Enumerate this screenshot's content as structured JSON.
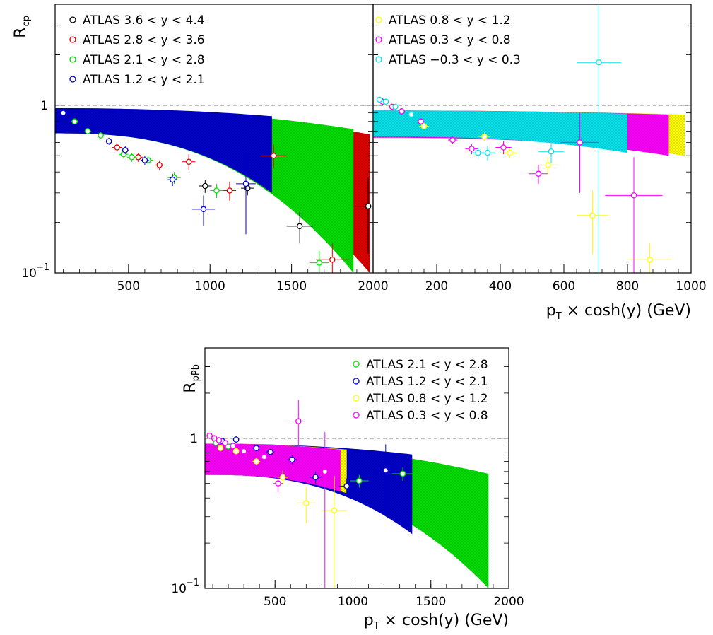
{
  "colors": {
    "black": "#000000",
    "red": "#e00000",
    "green": "#00e000",
    "blue": "#0000cc",
    "yellow": "#ffff00",
    "magenta": "#ff00ff",
    "cyan": "#00e5ee"
  },
  "chart_data": [
    {
      "type": "scatter",
      "panel": "top-left",
      "ylabel": "R",
      "ylabel_sub": "cp",
      "xlim": [
        50,
        2000
      ],
      "ylim": [
        0.1,
        4
      ],
      "yscale": "log",
      "xticks": [
        500,
        1000,
        1500,
        2000
      ],
      "xtick_labels": [
        "500",
        "1000",
        "1500",
        "2000"
      ],
      "ytick_labels": [
        {
          "v": 1,
          "base": "1",
          "exp": ""
        },
        {
          "v": 0.1,
          "base": "10",
          "exp": "−1"
        }
      ],
      "reference_line": 1,
      "legend_position": "top-left",
      "bands": [
        {
          "color": "red",
          "x": [
            50,
            1980
          ],
          "hi": [
            0.96,
            0.67
          ],
          "lo": [
            0.68,
            0.1
          ]
        },
        {
          "color": "green",
          "x": [
            50,
            1880
          ],
          "hi": [
            0.96,
            0.72
          ],
          "lo": [
            0.68,
            0.1
          ]
        },
        {
          "color": "blue",
          "x": [
            50,
            1380
          ],
          "hi": [
            0.96,
            0.86
          ],
          "lo": [
            0.68,
            0.3
          ]
        }
      ],
      "series": [
        {
          "name": "ATLAS  3.6 < y < 4.4",
          "color": "black",
          "points": [
            [
              970,
              0.33,
              40,
              0.03
            ],
            [
              1230,
              0.32,
              40,
              0.03
            ],
            [
              1550,
              0.19,
              80,
              0.04
            ],
            [
              1970,
              0.25,
              80,
              0.12
            ]
          ]
        },
        {
          "name": "ATLAS  2.8 < y < 3.6",
          "color": "red",
          "points": [
            [
              430,
              0.56,
              30,
              0.03
            ],
            [
              560,
              0.49,
              30,
              0.03
            ],
            [
              690,
              0.44,
              30,
              0.03
            ],
            [
              870,
              0.46,
              40,
              0.05
            ],
            [
              1120,
              0.31,
              40,
              0.04
            ],
            [
              1390,
              0.5,
              80,
              0.08
            ],
            [
              1750,
              0.12,
              100,
              0.03
            ]
          ]
        },
        {
          "name": "ATLAS  2.1 < y < 2.8",
          "color": "green",
          "points": [
            [
              170,
              0.8,
              20,
              0.03
            ],
            [
              250,
              0.7,
              20,
              0.03
            ],
            [
              330,
              0.66,
              20,
              0.03
            ],
            [
              470,
              0.51,
              30,
              0.03
            ],
            [
              520,
              0.49,
              30,
              0.03
            ],
            [
              620,
              0.47,
              30,
              0.03
            ],
            [
              780,
              0.37,
              40,
              0.03
            ],
            [
              1040,
              0.31,
              40,
              0.03
            ],
            [
              1670,
              0.115,
              60,
              0.02
            ]
          ]
        },
        {
          "name": "ATLAS  1.2 < y < 2.1",
          "color": "blue",
          "points": [
            [
              100,
              0.9,
              15,
              0.05
            ],
            [
              380,
              0.61,
              20,
              0.03
            ],
            [
              480,
              0.54,
              20,
              0.03
            ],
            [
              600,
              0.47,
              25,
              0.03
            ],
            [
              770,
              0.36,
              30,
              0.03
            ],
            [
              960,
              0.24,
              70,
              0.05
            ],
            [
              1220,
              0.34,
              60,
              0.17
            ]
          ]
        }
      ],
      "legend": [
        {
          "text": "ATLAS  3.6 < y < 4.4",
          "color": "black"
        },
        {
          "text": "ATLAS  2.8 < y < 3.6",
          "color": "red"
        },
        {
          "text": "ATLAS  2.1 < y < 2.8",
          "color": "green"
        },
        {
          "text": "ATLAS  1.2 < y < 2.1",
          "color": "blue"
        }
      ]
    },
    {
      "type": "scatter",
      "panel": "top-right",
      "xlabel": "p",
      "xlabel_sub": "T",
      "xlabel_rest": " × cosh(y) (GeV)",
      "xlim": [
        0,
        1000
      ],
      "ylim": [
        0.1,
        4
      ],
      "yscale": "log",
      "xticks": [
        200,
        400,
        600,
        800,
        1000
      ],
      "xtick_labels": [
        "200",
        "400",
        "600",
        "800",
        "1000"
      ],
      "reference_line": 1,
      "legend_position": "top-left",
      "bands": [
        {
          "color": "yellow",
          "x": [
            0,
            980
          ],
          "hi": [
            0.93,
            0.88
          ],
          "lo": [
            0.64,
            0.5
          ]
        },
        {
          "color": "magenta",
          "x": [
            0,
            930
          ],
          "hi": [
            0.93,
            0.88
          ],
          "lo": [
            0.64,
            0.5
          ]
        },
        {
          "color": "cyan",
          "x": [
            0,
            800
          ],
          "hi": [
            0.93,
            0.89
          ],
          "lo": [
            0.65,
            0.52
          ]
        }
      ],
      "series": [
        {
          "name": "ATLAS  0.8 < y < 1.2",
          "color": "yellow",
          "points": [
            [
              160,
              0.75,
              15,
              0.03
            ],
            [
              350,
              0.65,
              20,
              0.04
            ],
            [
              430,
              0.52,
              25,
              0.04
            ],
            [
              550,
              0.44,
              30,
              0.05
            ],
            [
              690,
              0.22,
              50,
              0.09
            ],
            [
              870,
              0.12,
              70,
              0.03
            ]
          ]
        },
        {
          "name": "ATLAS  0.3 < y < 0.8",
          "color": "magenta",
          "points": [
            [
              30,
              1.05,
              8,
              0.05
            ],
            [
              60,
              0.98,
              8,
              0.04
            ],
            [
              90,
              0.92,
              10,
              0.04
            ],
            [
              150,
              0.8,
              10,
              0.03
            ],
            [
              250,
              0.62,
              15,
              0.03
            ],
            [
              310,
              0.55,
              20,
              0.04
            ],
            [
              410,
              0.56,
              25,
              0.05
            ],
            [
              520,
              0.39,
              30,
              0.05
            ],
            [
              650,
              0.6,
              60,
              0.3
            ],
            [
              820,
              0.29,
              90,
              0.2
            ]
          ]
        },
        {
          "name": "ATLAS  −0.3 < y < 0.3",
          "color": "cyan",
          "points": [
            [
              20,
              1.08,
              6,
              0.04
            ],
            [
              40,
              1.05,
              8,
              0.04
            ],
            [
              70,
              0.98,
              8,
              0.04
            ],
            [
              120,
              0.88,
              10,
              0.03
            ],
            [
              330,
              0.52,
              20,
              0.04
            ],
            [
              360,
              0.52,
              25,
              0.05
            ],
            [
              560,
              0.53,
              40,
              0.08
            ],
            [
              710,
              1.8,
              70,
              2.2
            ]
          ]
        }
      ],
      "legend": [
        {
          "text": "ATLAS  0.8 < y < 1.2",
          "color": "yellow"
        },
        {
          "text": "ATLAS  0.3 < y < 0.8",
          "color": "magenta"
        },
        {
          "text": "ATLAS  −0.3 < y < 0.3",
          "color": "cyan"
        }
      ]
    },
    {
      "type": "scatter",
      "panel": "bottom",
      "ylabel": "R",
      "ylabel_sub": "pPb",
      "xlabel": "p",
      "xlabel_sub": "T",
      "xlabel_rest": " × cosh(y) (GeV)",
      "xlim": [
        50,
        2000
      ],
      "ylim": [
        0.1,
        4
      ],
      "yscale": "log",
      "xticks": [
        500,
        1000,
        1500,
        2000
      ],
      "xtick_labels": [
        "500",
        "1000",
        "1500",
        "2000"
      ],
      "ytick_labels": [
        {
          "v": 1,
          "base": "1",
          "exp": ""
        },
        {
          "v": 0.1,
          "base": "10",
          "exp": "−1"
        }
      ],
      "reference_line": 1,
      "legend_position": "top-right",
      "bands": [
        {
          "color": "green",
          "x": [
            50,
            1870
          ],
          "hi": [
            0.92,
            0.58
          ],
          "lo": [
            0.57,
            0.1
          ]
        },
        {
          "color": "blue",
          "x": [
            50,
            1380
          ],
          "hi": [
            0.92,
            0.78
          ],
          "lo": [
            0.57,
            0.23
          ]
        },
        {
          "color": "yellow",
          "x": [
            50,
            960
          ],
          "hi": [
            0.92,
            0.84
          ],
          "lo": [
            0.57,
            0.43
          ]
        },
        {
          "color": "magenta",
          "x": [
            50,
            920
          ],
          "hi": [
            0.92,
            0.84
          ],
          "lo": [
            0.57,
            0.44
          ]
        }
      ],
      "series": [
        {
          "name": "ATLAS 2.1 < y < 2.8",
          "color": "green",
          "points": [
            [
              120,
              0.93,
              15,
              0.04
            ],
            [
              200,
              0.88,
              15,
              0.04
            ],
            [
              1040,
              0.52,
              60,
              0.05
            ],
            [
              1320,
              0.58,
              70,
              0.06
            ]
          ]
        },
        {
          "name": "ATLAS 1.2 < y < 2.1",
          "color": "blue",
          "points": [
            [
              160,
              0.96,
              15,
              0.04
            ],
            [
              250,
              0.98,
              20,
              0.05
            ],
            [
              380,
              0.86,
              20,
              0.04
            ],
            [
              470,
              0.81,
              25,
              0.04
            ],
            [
              610,
              0.72,
              30,
              0.05
            ],
            [
              760,
              0.55,
              40,
              0.05
            ],
            [
              960,
              0.48,
              50,
              0.06
            ],
            [
              1210,
              0.61,
              60,
              0.3
            ]
          ]
        },
        {
          "name": "ATLAS 0.8 < y < 1.2",
          "color": "yellow",
          "points": [
            [
              150,
              0.86,
              15,
              0.04
            ],
            [
              250,
              0.82,
              20,
              0.04
            ],
            [
              380,
              0.7,
              25,
              0.04
            ],
            [
              550,
              0.55,
              35,
              0.06
            ],
            [
              700,
              0.37,
              60,
              0.1
            ],
            [
              880,
              0.33,
              80,
              0.23
            ]
          ]
        },
        {
          "name": "ATLAS 0.3 < y < 0.8",
          "color": "magenta",
          "points": [
            [
              80,
              1.04,
              8,
              0.05
            ],
            [
              110,
              1.0,
              10,
              0.05
            ],
            [
              140,
              0.97,
              12,
              0.05
            ],
            [
              180,
              0.93,
              12,
              0.04
            ],
            [
              230,
              0.89,
              15,
              0.04
            ],
            [
              300,
              0.82,
              20,
              0.04
            ],
            [
              430,
              0.75,
              25,
              0.04
            ],
            [
              520,
              0.5,
              30,
              0.07
            ],
            [
              650,
              1.3,
              40,
              0.5
            ],
            [
              820,
              0.6,
              60,
              0.5
            ]
          ]
        }
      ],
      "legend": [
        {
          "text": "ATLAS 2.1 < y < 2.8",
          "color": "green"
        },
        {
          "text": "ATLAS 1.2 < y < 2.1",
          "color": "blue"
        },
        {
          "text": "ATLAS 0.8 < y < 1.2",
          "color": "yellow"
        },
        {
          "text": "ATLAS 0.3 < y < 0.8",
          "color": "magenta"
        }
      ]
    }
  ]
}
